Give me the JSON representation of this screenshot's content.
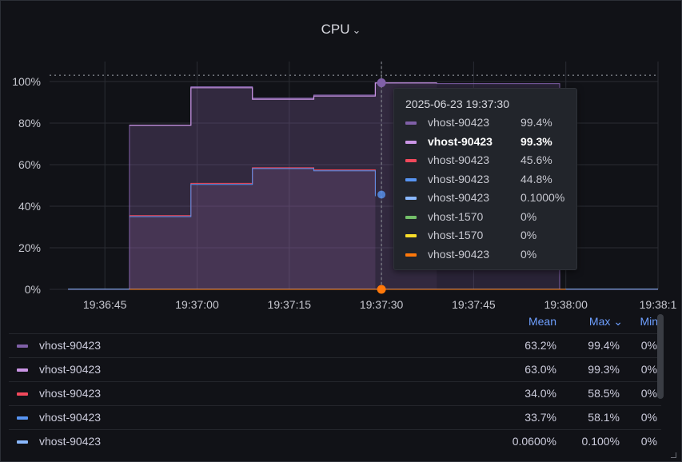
{
  "panel": {
    "title": "CPU",
    "chevron": "⌄"
  },
  "tooltip": {
    "time": "2025-06-23 19:37:30",
    "rows": [
      {
        "name": "vhost-90423",
        "value": "99.4%",
        "color": "#8060a8",
        "bold": false
      },
      {
        "name": "vhost-90423",
        "value": "99.3%",
        "color": "#ca95e5",
        "bold": true
      },
      {
        "name": "vhost-90423",
        "value": "45.6%",
        "color": "#f2495c",
        "bold": false
      },
      {
        "name": "vhost-90423",
        "value": "44.8%",
        "color": "#5794f2",
        "bold": false
      },
      {
        "name": "vhost-90423",
        "value": "0.1000%",
        "color": "#8ab8ff",
        "bold": false
      },
      {
        "name": "vhost-1570",
        "value": "0%",
        "color": "#73bf69",
        "bold": false
      },
      {
        "name": "vhost-1570",
        "value": "0%",
        "color": "#fade2a",
        "bold": false
      },
      {
        "name": "vhost-90423",
        "value": "0%",
        "color": "#ff780a",
        "bold": false
      }
    ]
  },
  "legend": {
    "headers": {
      "mean": "Mean",
      "max": "Max ⌄",
      "min": "Min"
    },
    "rows": [
      {
        "name": "vhost-90423",
        "mean": "63.2%",
        "max": "99.4%",
        "min": "0%",
        "color": "#8060a8"
      },
      {
        "name": "vhost-90423",
        "mean": "63.0%",
        "max": "99.3%",
        "min": "0%",
        "color": "#ca95e5"
      },
      {
        "name": "vhost-90423",
        "mean": "34.0%",
        "max": "58.5%",
        "min": "0%",
        "color": "#f2495c"
      },
      {
        "name": "vhost-90423",
        "mean": "33.7%",
        "max": "58.1%",
        "min": "0%",
        "color": "#5794f2"
      },
      {
        "name": "vhost-90423",
        "mean": "0.0600%",
        "max": "0.100%",
        "min": "0%",
        "color": "#8ab8ff"
      }
    ]
  },
  "chart_data": {
    "type": "area",
    "title": "CPU",
    "y_ticks": [
      "0%",
      "20%",
      "40%",
      "60%",
      "80%",
      "100%"
    ],
    "x_ticks": [
      "19:36:45",
      "19:37:00",
      "19:37:15",
      "19:37:30",
      "19:37:45",
      "19:38:00",
      "19:38:1"
    ],
    "ylim": [
      0,
      100
    ],
    "xlim": [
      "19:36:36",
      "19:38:15"
    ],
    "threshold": 103,
    "hover_x": "19:37:30",
    "grid": true,
    "series": [
      {
        "name": "vhost-90423",
        "color": "#8060a8",
        "points": [
          [
            "19:36:39",
            0
          ],
          [
            "19:36:49",
            0
          ],
          [
            "19:36:49",
            79
          ],
          [
            "19:36:59",
            79
          ],
          [
            "19:36:59",
            97.5
          ],
          [
            "19:37:09",
            97.5
          ],
          [
            "19:37:09",
            92
          ],
          [
            "19:37:19",
            92
          ],
          [
            "19:37:19",
            93.5
          ],
          [
            "19:37:29",
            93.5
          ],
          [
            "19:37:29",
            99.4
          ],
          [
            "19:37:39",
            99.4
          ],
          [
            "19:37:39",
            99
          ],
          [
            "19:37:49",
            99
          ],
          [
            "19:37:49",
            99
          ],
          [
            "19:37:59",
            99
          ],
          [
            "19:37:59",
            0
          ],
          [
            "19:38:15",
            0
          ]
        ]
      },
      {
        "name": "vhost-90423",
        "color": "#ca95e5",
        "points": [
          [
            "19:36:49",
            79
          ],
          [
            "19:36:59",
            79
          ],
          [
            "19:36:59",
            97
          ],
          [
            "19:37:09",
            97
          ],
          [
            "19:37:09",
            91.5
          ],
          [
            "19:37:19",
            91.5
          ],
          [
            "19:37:19",
            93
          ],
          [
            "19:37:29",
            93
          ],
          [
            "19:37:29",
            99.3
          ],
          [
            "19:37:39",
            99.3
          ]
        ]
      },
      {
        "name": "vhost-90423",
        "color": "#f2495c",
        "points": [
          [
            "19:36:49",
            35.5
          ],
          [
            "19:36:59",
            35.5
          ],
          [
            "19:36:59",
            51
          ],
          [
            "19:37:09",
            51
          ],
          [
            "19:37:09",
            58.5
          ],
          [
            "19:37:19",
            58.5
          ],
          [
            "19:37:19",
            57.5
          ],
          [
            "19:37:29",
            57.5
          ],
          [
            "19:37:29",
            45.6
          ]
        ]
      },
      {
        "name": "vhost-90423",
        "color": "#5794f2",
        "points": [
          [
            "19:36:49",
            35
          ],
          [
            "19:36:59",
            35
          ],
          [
            "19:36:59",
            50.5
          ],
          [
            "19:37:09",
            50.5
          ],
          [
            "19:37:09",
            58.1
          ],
          [
            "19:37:19",
            58.1
          ],
          [
            "19:37:19",
            57
          ],
          [
            "19:37:29",
            57
          ],
          [
            "19:37:29",
            44.8
          ]
        ]
      },
      {
        "name": "vhost-90423",
        "color": "#8ab8ff",
        "points": [
          [
            "19:36:39",
            0.1
          ],
          [
            "19:38:15",
            0.1
          ]
        ]
      },
      {
        "name": "vhost-90423",
        "color": "#ff780a",
        "points": [
          [
            "19:36:49",
            0
          ],
          [
            "19:38:00",
            0
          ]
        ]
      }
    ]
  }
}
